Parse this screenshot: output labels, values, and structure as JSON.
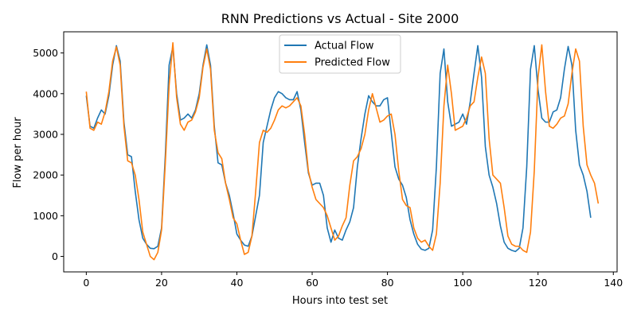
{
  "chart_data": {
    "type": "line",
    "title": "RNN Predictions vs Actual - Site 2000",
    "xlabel": "Hours into test set",
    "ylabel": "Flow per hour",
    "xlim": [
      -6,
      141
    ],
    "ylim": [
      -380,
      5520
    ],
    "xticks": [
      0,
      20,
      40,
      60,
      80,
      100,
      120,
      140
    ],
    "yticks": [
      0,
      1000,
      2000,
      3000,
      4000,
      5000
    ],
    "grid": false,
    "legend_position": "top-center",
    "series": [
      {
        "name": "Actual Flow",
        "color": "#1f77b4",
        "values": [
          3950,
          3200,
          3150,
          3400,
          3600,
          3500,
          3950,
          4700,
          5180,
          4800,
          3300,
          2500,
          2450,
          1600,
          900,
          450,
          300,
          200,
          190,
          250,
          700,
          2500,
          4700,
          5150,
          4000,
          3350,
          3400,
          3500,
          3400,
          3600,
          4000,
          4700,
          5200,
          4700,
          3200,
          2300,
          2250,
          1800,
          1500,
          1050,
          550,
          400,
          280,
          250,
          500,
          1000,
          1500,
          2800,
          3200,
          3600,
          3900,
          4050,
          4000,
          3900,
          3850,
          3850,
          4050,
          3600,
          2800,
          2050,
          1750,
          1800,
          1800,
          1500,
          700,
          350,
          650,
          450,
          400,
          650,
          850,
          1200,
          2200,
          2900,
          3500,
          3950,
          3800,
          3700,
          3700,
          3850,
          3900,
          3050,
          2200,
          1900,
          1750,
          1450,
          900,
          550,
          300,
          180,
          150,
          200,
          650,
          2200,
          4500,
          5100,
          3800,
          3200,
          3250,
          3300,
          3500,
          3250,
          3800,
          4500,
          5180,
          4400,
          2700,
          2000,
          1700,
          1300,
          750,
          350,
          200,
          150,
          120,
          200,
          700,
          2200,
          4600,
          5180,
          4100,
          3400,
          3300,
          3300,
          3550,
          3600,
          3900,
          4600,
          5160,
          4700,
          3100,
          2250,
          2000,
          1600,
          950
        ]
      },
      {
        "name": "Predicted Flow",
        "color": "#ff7f0e",
        "values": [
          4050,
          3150,
          3100,
          3300,
          3250,
          3550,
          4050,
          4800,
          5150,
          4700,
          3200,
          2350,
          2300,
          2000,
          1400,
          600,
          300,
          0,
          -80,
          100,
          650,
          2300,
          4200,
          5250,
          3900,
          3250,
          3100,
          3300,
          3350,
          3550,
          3900,
          4650,
          5100,
          4600,
          3100,
          2550,
          2400,
          1800,
          1400,
          950,
          800,
          400,
          50,
          100,
          500,
          1600,
          2800,
          3100,
          3050,
          3150,
          3350,
          3600,
          3700,
          3650,
          3700,
          3800,
          3900,
          3700,
          3000,
          2100,
          1700,
          1400,
          1300,
          1200,
          1000,
          700,
          400,
          500,
          750,
          950,
          1750,
          2350,
          2450,
          2650,
          3000,
          3600,
          4000,
          3650,
          3300,
          3350,
          3450,
          3500,
          3000,
          2100,
          1400,
          1250,
          1200,
          700,
          450,
          350,
          400,
          250,
          150,
          550,
          1800,
          3700,
          4700,
          4000,
          3100,
          3150,
          3200,
          3400,
          3700,
          3800,
          4400,
          4900,
          4500,
          2900,
          2000,
          1900,
          1800,
          1200,
          500,
          300,
          250,
          250,
          150,
          100,
          600,
          2100,
          4400,
          5200,
          4050,
          3200,
          3150,
          3250,
          3400,
          3450,
          3750,
          4500,
          5100,
          4800,
          3200,
          2250,
          2000,
          1800,
          1300
        ]
      }
    ]
  }
}
